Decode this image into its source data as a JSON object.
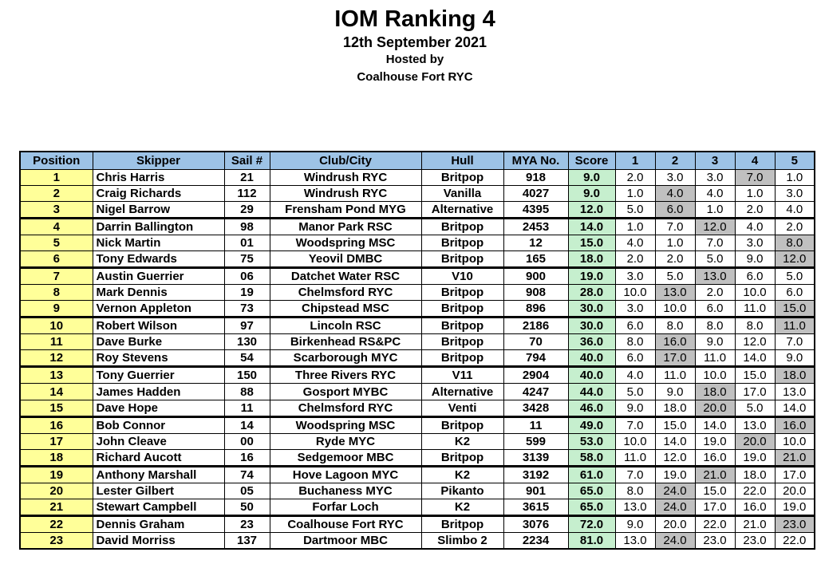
{
  "header": {
    "title": "IOM Ranking 4",
    "date": "12th September 2021",
    "hosted_by": "Hosted by",
    "host_club": "Coalhouse Fort RYC"
  },
  "table": {
    "columns": [
      "Position",
      "Skipper",
      "Sail #",
      "Club/City",
      "Hull",
      "MYA No.",
      "Score",
      "1",
      "2",
      "3",
      "4",
      "5"
    ],
    "rows": [
      {
        "position": "1",
        "skipper": "Chris Harris",
        "sail": "21",
        "club": "Windrush RYC",
        "hull": "Britpop",
        "mya": "918",
        "score": "9.0",
        "races": [
          "2.0",
          "3.0",
          "3.0",
          "7.0",
          "1.0"
        ],
        "discard": 3
      },
      {
        "position": "2",
        "skipper": "Craig Richards",
        "sail": "112",
        "club": "Windrush RYC",
        "hull": "Vanilla",
        "mya": "4027",
        "score": "9.0",
        "races": [
          "1.0",
          "4.0",
          "4.0",
          "1.0",
          "3.0"
        ],
        "discard": 1
      },
      {
        "position": "3",
        "skipper": "Nigel Barrow",
        "sail": "29",
        "club": "Frensham Pond MYG",
        "hull": "Alternative",
        "mya": "4395",
        "score": "12.0",
        "races": [
          "5.0",
          "6.0",
          "1.0",
          "2.0",
          "4.0"
        ],
        "discard": 1
      },
      {
        "position": "4",
        "skipper": "Darrin Ballington",
        "sail": "98",
        "club": "Manor Park RSC",
        "hull": "Britpop",
        "mya": "2453",
        "score": "14.0",
        "races": [
          "1.0",
          "7.0",
          "12.0",
          "4.0",
          "2.0"
        ],
        "discard": 2
      },
      {
        "position": "5",
        "skipper": "Nick Martin",
        "sail": "01",
        "club": "Woodspring MSC",
        "hull": "Britpop",
        "mya": "12",
        "score": "15.0",
        "races": [
          "4.0",
          "1.0",
          "7.0",
          "3.0",
          "8.0"
        ],
        "discard": 4
      },
      {
        "position": "6",
        "skipper": "Tony Edwards",
        "sail": "75",
        "club": "Yeovil DMBC",
        "hull": "Britpop",
        "mya": "165",
        "score": "18.0",
        "races": [
          "2.0",
          "2.0",
          "5.0",
          "9.0",
          "12.0"
        ],
        "discard": 4
      },
      {
        "position": "7",
        "skipper": "Austin Guerrier",
        "sail": "06",
        "club": "Datchet Water RSC",
        "hull": "V10",
        "mya": "900",
        "score": "19.0",
        "races": [
          "3.0",
          "5.0",
          "13.0",
          "6.0",
          "5.0"
        ],
        "discard": 2
      },
      {
        "position": "8",
        "skipper": "Mark Dennis",
        "sail": "19",
        "club": "Chelmsford RYC",
        "hull": "Britpop",
        "mya": "908",
        "score": "28.0",
        "races": [
          "10.0",
          "13.0",
          "2.0",
          "10.0",
          "6.0"
        ],
        "discard": 1
      },
      {
        "position": "9",
        "skipper": "Vernon Appleton",
        "sail": "73",
        "club": "Chipstead MSC",
        "hull": "Britpop",
        "mya": "896",
        "score": "30.0",
        "races": [
          "3.0",
          "10.0",
          "6.0",
          "11.0",
          "15.0"
        ],
        "discard": 4
      },
      {
        "position": "10",
        "skipper": "Robert Wilson",
        "sail": "97",
        "club": "Lincoln RSC",
        "hull": "Britpop",
        "mya": "2186",
        "score": "30.0",
        "races": [
          "6.0",
          "8.0",
          "8.0",
          "8.0",
          "11.0"
        ],
        "discard": 4
      },
      {
        "position": "11",
        "skipper": "Dave Burke",
        "sail": "130",
        "club": "Birkenhead RS&PC",
        "hull": "Britpop",
        "mya": "70",
        "score": "36.0",
        "races": [
          "8.0",
          "16.0",
          "9.0",
          "12.0",
          "7.0"
        ],
        "discard": 1
      },
      {
        "position": "12",
        "skipper": "Roy Stevens",
        "sail": "54",
        "club": "Scarborough MYC",
        "hull": "Britpop",
        "mya": "794",
        "score": "40.0",
        "races": [
          "6.0",
          "17.0",
          "11.0",
          "14.0",
          "9.0"
        ],
        "discard": 1
      },
      {
        "position": "13",
        "skipper": "Tony Guerrier",
        "sail": "150",
        "club": "Three Rivers RYC",
        "hull": "V11",
        "mya": "2904",
        "score": "40.0",
        "races": [
          "4.0",
          "11.0",
          "10.0",
          "15.0",
          "18.0"
        ],
        "discard": 4
      },
      {
        "position": "14",
        "skipper": "James Hadden",
        "sail": "88",
        "club": "Gosport MYBC",
        "hull": "Alternative",
        "mya": "4247",
        "score": "44.0",
        "races": [
          "5.0",
          "9.0",
          "18.0",
          "17.0",
          "13.0"
        ],
        "discard": 2
      },
      {
        "position": "15",
        "skipper": "Dave Hope",
        "sail": "11",
        "club": "Chelmsford RYC",
        "hull": "Venti",
        "mya": "3428",
        "score": "46.0",
        "races": [
          "9.0",
          "18.0",
          "20.0",
          "5.0",
          "14.0"
        ],
        "discard": 2
      },
      {
        "position": "16",
        "skipper": "Bob Connor",
        "sail": "14",
        "club": "Woodspring MSC",
        "hull": "Britpop",
        "mya": "11",
        "score": "49.0",
        "races": [
          "7.0",
          "15.0",
          "14.0",
          "13.0",
          "16.0"
        ],
        "discard": 4
      },
      {
        "position": "17",
        "skipper": "John Cleave",
        "sail": "00",
        "club": "Ryde MYC",
        "hull": "K2",
        "mya": "599",
        "score": "53.0",
        "races": [
          "10.0",
          "14.0",
          "19.0",
          "20.0",
          "10.0"
        ],
        "discard": 3
      },
      {
        "position": "18",
        "skipper": "Richard Aucott",
        "sail": "16",
        "club": "Sedgemoor MBC",
        "hull": "Britpop",
        "mya": "3139",
        "score": "58.0",
        "races": [
          "11.0",
          "12.0",
          "16.0",
          "19.0",
          "21.0"
        ],
        "discard": 4
      },
      {
        "position": "19",
        "skipper": "Anthony Marshall",
        "sail": "74",
        "club": "Hove Lagoon MYC",
        "hull": "K2",
        "mya": "3192",
        "score": "61.0",
        "races": [
          "7.0",
          "19.0",
          "21.0",
          "18.0",
          "17.0"
        ],
        "discard": 2
      },
      {
        "position": "20",
        "skipper": "Lester Gilbert",
        "sail": "05",
        "club": "Buchaness MYC",
        "hull": "Pikanto",
        "mya": "901",
        "score": "65.0",
        "races": [
          "8.0",
          "24.0",
          "15.0",
          "22.0",
          "20.0"
        ],
        "discard": 1
      },
      {
        "position": "21",
        "skipper": "Stewart Campbell",
        "sail": "50",
        "club": "Forfar Loch",
        "hull": "K2",
        "mya": "3615",
        "score": "65.0",
        "races": [
          "13.0",
          "24.0",
          "17.0",
          "16.0",
          "19.0"
        ],
        "discard": 1
      },
      {
        "position": "22",
        "skipper": "Dennis Graham",
        "sail": "23",
        "club": "Coalhouse Fort RYC",
        "hull": "Britpop",
        "mya": "3076",
        "score": "72.0",
        "races": [
          "9.0",
          "20.0",
          "22.0",
          "21.0",
          "23.0"
        ],
        "discard": 4
      },
      {
        "position": "23",
        "skipper": "David Morriss",
        "sail": "137",
        "club": "Dartmoor MBC",
        "hull": "Slimbo 2",
        "mya": "2234",
        "score": "81.0",
        "races": [
          "13.0",
          "24.0",
          "23.0",
          "23.0",
          "22.0"
        ],
        "discard": 1
      }
    ],
    "colors": {
      "header_bg": "#9dc3e6",
      "position_bg": "#ffff99",
      "score_bg": "#c6efce",
      "discard_bg": "#c0c0c0"
    }
  }
}
